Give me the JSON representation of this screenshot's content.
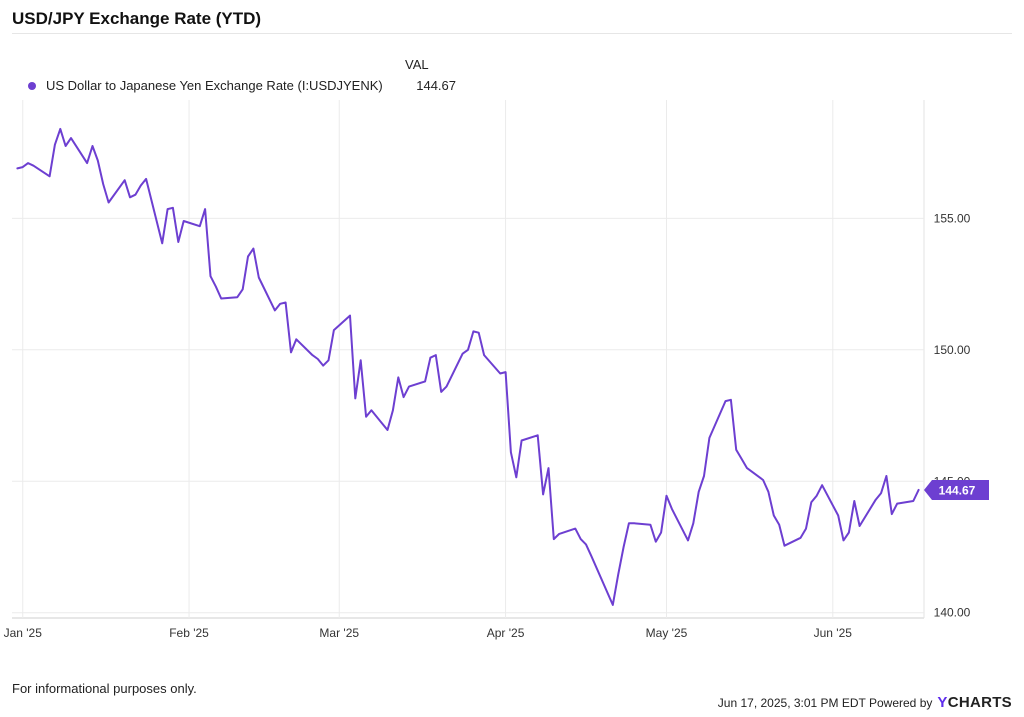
{
  "title": "USD/JPY Exchange Rate (YTD)",
  "legend": {
    "header": "VAL",
    "series_name": "US Dollar to Japanese Yen Exchange Rate (I:USDJYENK)",
    "series_value": "144.67"
  },
  "footer": {
    "disclaimer": "For informational purposes only.",
    "timestamp": "Jun 17, 2025, 3:01 PM EDT Powered by",
    "brand_first": "Y",
    "brand_rest": "CHARTS"
  },
  "colors": {
    "series": "#6d3fd1",
    "grid": "#ebebeb",
    "axis_text": "#333333"
  },
  "chart_data": {
    "type": "line",
    "x_tick_labels": [
      "Jan '25",
      "Feb '25",
      "Mar '25",
      "Apr '25",
      "May '25",
      "Jun '25"
    ],
    "y_tick_labels": [
      "140.00",
      "145.00",
      "150.00",
      "155.00"
    ],
    "ylim": [
      139.8,
      159.5
    ],
    "end_label": "144.67",
    "series": [
      {
        "name": "US Dollar to Japanese Yen Exchange Rate (I:USDJYENK)",
        "x": [
          "2024-12-31",
          "2025-01-01",
          "2025-01-02",
          "2025-01-03",
          "2025-01-06",
          "2025-01-07",
          "2025-01-08",
          "2025-01-09",
          "2025-01-10",
          "2025-01-13",
          "2025-01-14",
          "2025-01-15",
          "2025-01-16",
          "2025-01-17",
          "2025-01-20",
          "2025-01-21",
          "2025-01-22",
          "2025-01-23",
          "2025-01-24",
          "2025-01-27",
          "2025-01-28",
          "2025-01-29",
          "2025-01-30",
          "2025-01-31",
          "2025-02-03",
          "2025-02-04",
          "2025-02-05",
          "2025-02-06",
          "2025-02-07",
          "2025-02-10",
          "2025-02-11",
          "2025-02-12",
          "2025-02-13",
          "2025-02-14",
          "2025-02-17",
          "2025-02-18",
          "2025-02-19",
          "2025-02-20",
          "2025-02-21",
          "2025-02-24",
          "2025-02-25",
          "2025-02-26",
          "2025-02-27",
          "2025-02-28",
          "2025-03-03",
          "2025-03-04",
          "2025-03-05",
          "2025-03-06",
          "2025-03-07",
          "2025-03-10",
          "2025-03-11",
          "2025-03-12",
          "2025-03-13",
          "2025-03-14",
          "2025-03-17",
          "2025-03-18",
          "2025-03-19",
          "2025-03-20",
          "2025-03-21",
          "2025-03-24",
          "2025-03-25",
          "2025-03-26",
          "2025-03-27",
          "2025-03-28",
          "2025-03-31",
          "2025-04-01",
          "2025-04-02",
          "2025-04-03",
          "2025-04-04",
          "2025-04-07",
          "2025-04-08",
          "2025-04-09",
          "2025-04-10",
          "2025-04-11",
          "2025-04-14",
          "2025-04-15",
          "2025-04-16",
          "2025-04-17",
          "2025-04-21",
          "2025-04-22",
          "2025-04-23",
          "2025-04-24",
          "2025-04-25",
          "2025-04-28",
          "2025-04-29",
          "2025-04-30",
          "2025-05-01",
          "2025-05-02",
          "2025-05-05",
          "2025-05-06",
          "2025-05-07",
          "2025-05-08",
          "2025-05-09",
          "2025-05-12",
          "2025-05-13",
          "2025-05-14",
          "2025-05-15",
          "2025-05-16",
          "2025-05-19",
          "2025-05-20",
          "2025-05-21",
          "2025-05-22",
          "2025-05-23",
          "2025-05-26",
          "2025-05-27",
          "2025-05-28",
          "2025-05-29",
          "2025-05-30",
          "2025-06-02",
          "2025-06-03",
          "2025-06-04",
          "2025-06-05",
          "2025-06-06",
          "2025-06-09",
          "2025-06-10",
          "2025-06-11",
          "2025-06-12",
          "2025-06-13",
          "2025-06-16",
          "2025-06-17"
        ],
        "values": [
          156.9,
          156.95,
          157.1,
          157.0,
          156.6,
          157.8,
          158.4,
          157.75,
          158.05,
          157.1,
          157.75,
          157.2,
          156.3,
          155.6,
          156.45,
          155.8,
          155.9,
          156.25,
          156.5,
          154.05,
          155.35,
          155.4,
          154.1,
          154.9,
          154.7,
          155.35,
          152.8,
          152.4,
          151.95,
          152.0,
          152.3,
          153.55,
          153.85,
          152.75,
          151.5,
          151.75,
          151.8,
          149.9,
          150.4,
          149.8,
          149.65,
          149.4,
          149.6,
          150.75,
          151.3,
          148.15,
          149.6,
          147.45,
          147.7,
          146.95,
          147.7,
          148.95,
          148.2,
          148.6,
          148.8,
          149.7,
          149.8,
          148.4,
          148.6,
          149.85,
          150.0,
          150.7,
          150.65,
          149.8,
          149.1,
          149.15,
          146.1,
          145.15,
          146.55,
          146.75,
          144.5,
          145.5,
          142.8,
          143.0,
          143.2,
          142.8,
          142.6,
          142.15,
          140.3,
          141.45,
          142.5,
          143.4,
          143.4,
          143.35,
          142.7,
          143.05,
          144.45,
          143.95,
          142.75,
          143.4,
          144.6,
          145.2,
          146.65,
          148.05,
          148.1,
          146.2,
          145.85,
          145.5,
          145.05,
          144.6,
          143.7,
          143.35,
          142.55,
          142.85,
          143.2,
          144.2,
          144.45,
          144.85,
          143.7,
          142.75,
          143.05,
          144.25,
          143.3,
          144.3,
          144.55,
          145.2,
          143.75,
          144.15,
          144.25,
          144.67
        ]
      }
    ]
  }
}
